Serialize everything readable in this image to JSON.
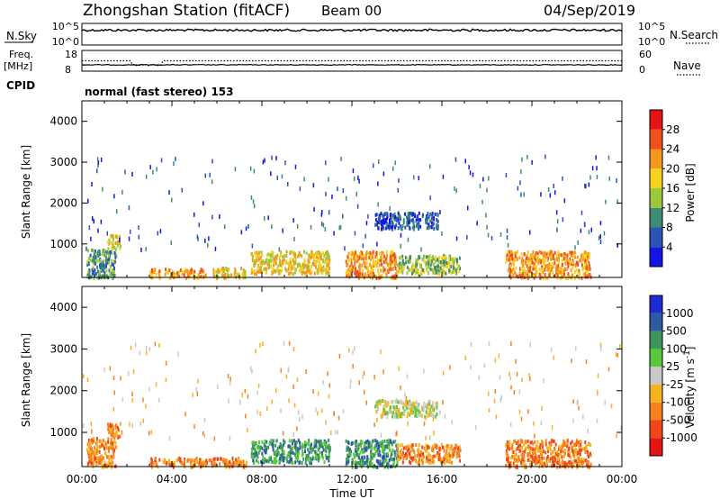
{
  "header": {
    "station": "Zhongshan Station (fitACF)",
    "beam": "Beam 00",
    "date": "04/Sep/2019"
  },
  "top_panels": {
    "nsky_label": "N.Sky",
    "nsky_ticks": [
      "10^5",
      "10^0"
    ],
    "nsearch_label": "N.Search",
    "nsearch_ticks": [
      "10^5",
      "10^0"
    ],
    "freq_label_1": "Freq.",
    "freq_label_2": "[MHz]",
    "freq_ticks": [
      "18",
      "8"
    ],
    "nave_label": "Nave",
    "nave_ticks": [
      "60",
      "0"
    ],
    "cpid_label": "CPID",
    "cpid_value": "normal (fast stereo) 153"
  },
  "chart_data": [
    {
      "type": "heatmap",
      "name": "power-panel",
      "ylabel": "Slant Range [km]",
      "ylim": [
        180,
        4500
      ],
      "yticks": [
        "1000",
        "2000",
        "3000",
        "4000"
      ],
      "ytick_values": [
        1000,
        2000,
        3000,
        4000
      ],
      "colorbar_label": "Power [dB]",
      "colorbar_ticks": [
        "4",
        "8",
        "12",
        "16",
        "20",
        "24",
        "28"
      ],
      "colorbar_colors": [
        "#1414e6",
        "#2a55b4",
        "#3c8c73",
        "#9bc83c",
        "#f5d21e",
        "#f5961e",
        "#f0501e",
        "#e61414"
      ],
      "regions": [
        {
          "t0": 0.2,
          "t1": 1.5,
          "r0": 200,
          "r1": 900,
          "level": 2
        },
        {
          "t0": 1.1,
          "t1": 1.7,
          "r0": 900,
          "r1": 1250,
          "level": 4
        },
        {
          "t0": 3.0,
          "t1": 5.5,
          "r0": 200,
          "r1": 420,
          "level": 5
        },
        {
          "t0": 5.8,
          "t1": 7.3,
          "r0": 200,
          "r1": 450,
          "level": 4
        },
        {
          "t0": 7.5,
          "t1": 11.0,
          "r0": 300,
          "r1": 850,
          "level": 4
        },
        {
          "t0": 11.7,
          "t1": 14.0,
          "r0": 200,
          "r1": 850,
          "level": 5
        },
        {
          "t0": 13.0,
          "t1": 15.8,
          "r0": 1400,
          "r1": 1800,
          "level": 1
        },
        {
          "t0": 14.0,
          "t1": 16.8,
          "r0": 300,
          "r1": 750,
          "level": 3
        },
        {
          "t0": 18.8,
          "t1": 22.6,
          "r0": 200,
          "r1": 850,
          "level": 5
        }
      ]
    },
    {
      "type": "heatmap",
      "name": "velocity-panel",
      "xlabel": "Time UT",
      "ylabel": "Slant Range [km]",
      "xlim": [
        0,
        24
      ],
      "ylim": [
        180,
        4500
      ],
      "xticks": [
        "00:00",
        "04:00",
        "08:00",
        "12:00",
        "16:00",
        "20:00",
        "00:00"
      ],
      "yticks": [
        "1000",
        "2000",
        "3000",
        "4000"
      ],
      "ytick_values": [
        1000,
        2000,
        3000,
        4000
      ],
      "colorbar_label": "Velocity [m s",
      "colorbar_label_sup": "-1",
      "colorbar_label_end": "]",
      "colorbar_ticks": [
        "1000",
        "500",
        "100",
        "25",
        "-25",
        "-100",
        "-500",
        "-1000"
      ],
      "colorbar_colors": [
        "#1e2ad2",
        "#2d5aa0",
        "#3c965a",
        "#5ac83c",
        "#c8c8c8",
        "#f5b41e",
        "#f5821e",
        "#f0461e",
        "#e61414"
      ],
      "regions": [
        {
          "t0": 0.2,
          "t1": 1.5,
          "r0": 200,
          "r1": 900,
          "level": 6
        },
        {
          "t0": 1.1,
          "t1": 1.7,
          "r0": 900,
          "r1": 1250,
          "level": 6
        },
        {
          "t0": 3.0,
          "t1": 7.3,
          "r0": 200,
          "r1": 420,
          "level": 6
        },
        {
          "t0": 7.5,
          "t1": 11.0,
          "r0": 300,
          "r1": 850,
          "level": 2
        },
        {
          "t0": 11.7,
          "t1": 14.0,
          "r0": 200,
          "r1": 850,
          "level": 2
        },
        {
          "t0": 13.0,
          "t1": 15.8,
          "r0": 1400,
          "r1": 1800,
          "level": 4
        },
        {
          "t0": 14.0,
          "t1": 16.8,
          "r0": 300,
          "r1": 750,
          "level": 6
        },
        {
          "t0": 18.8,
          "t1": 22.6,
          "r0": 200,
          "r1": 850,
          "level": 6
        }
      ]
    }
  ]
}
